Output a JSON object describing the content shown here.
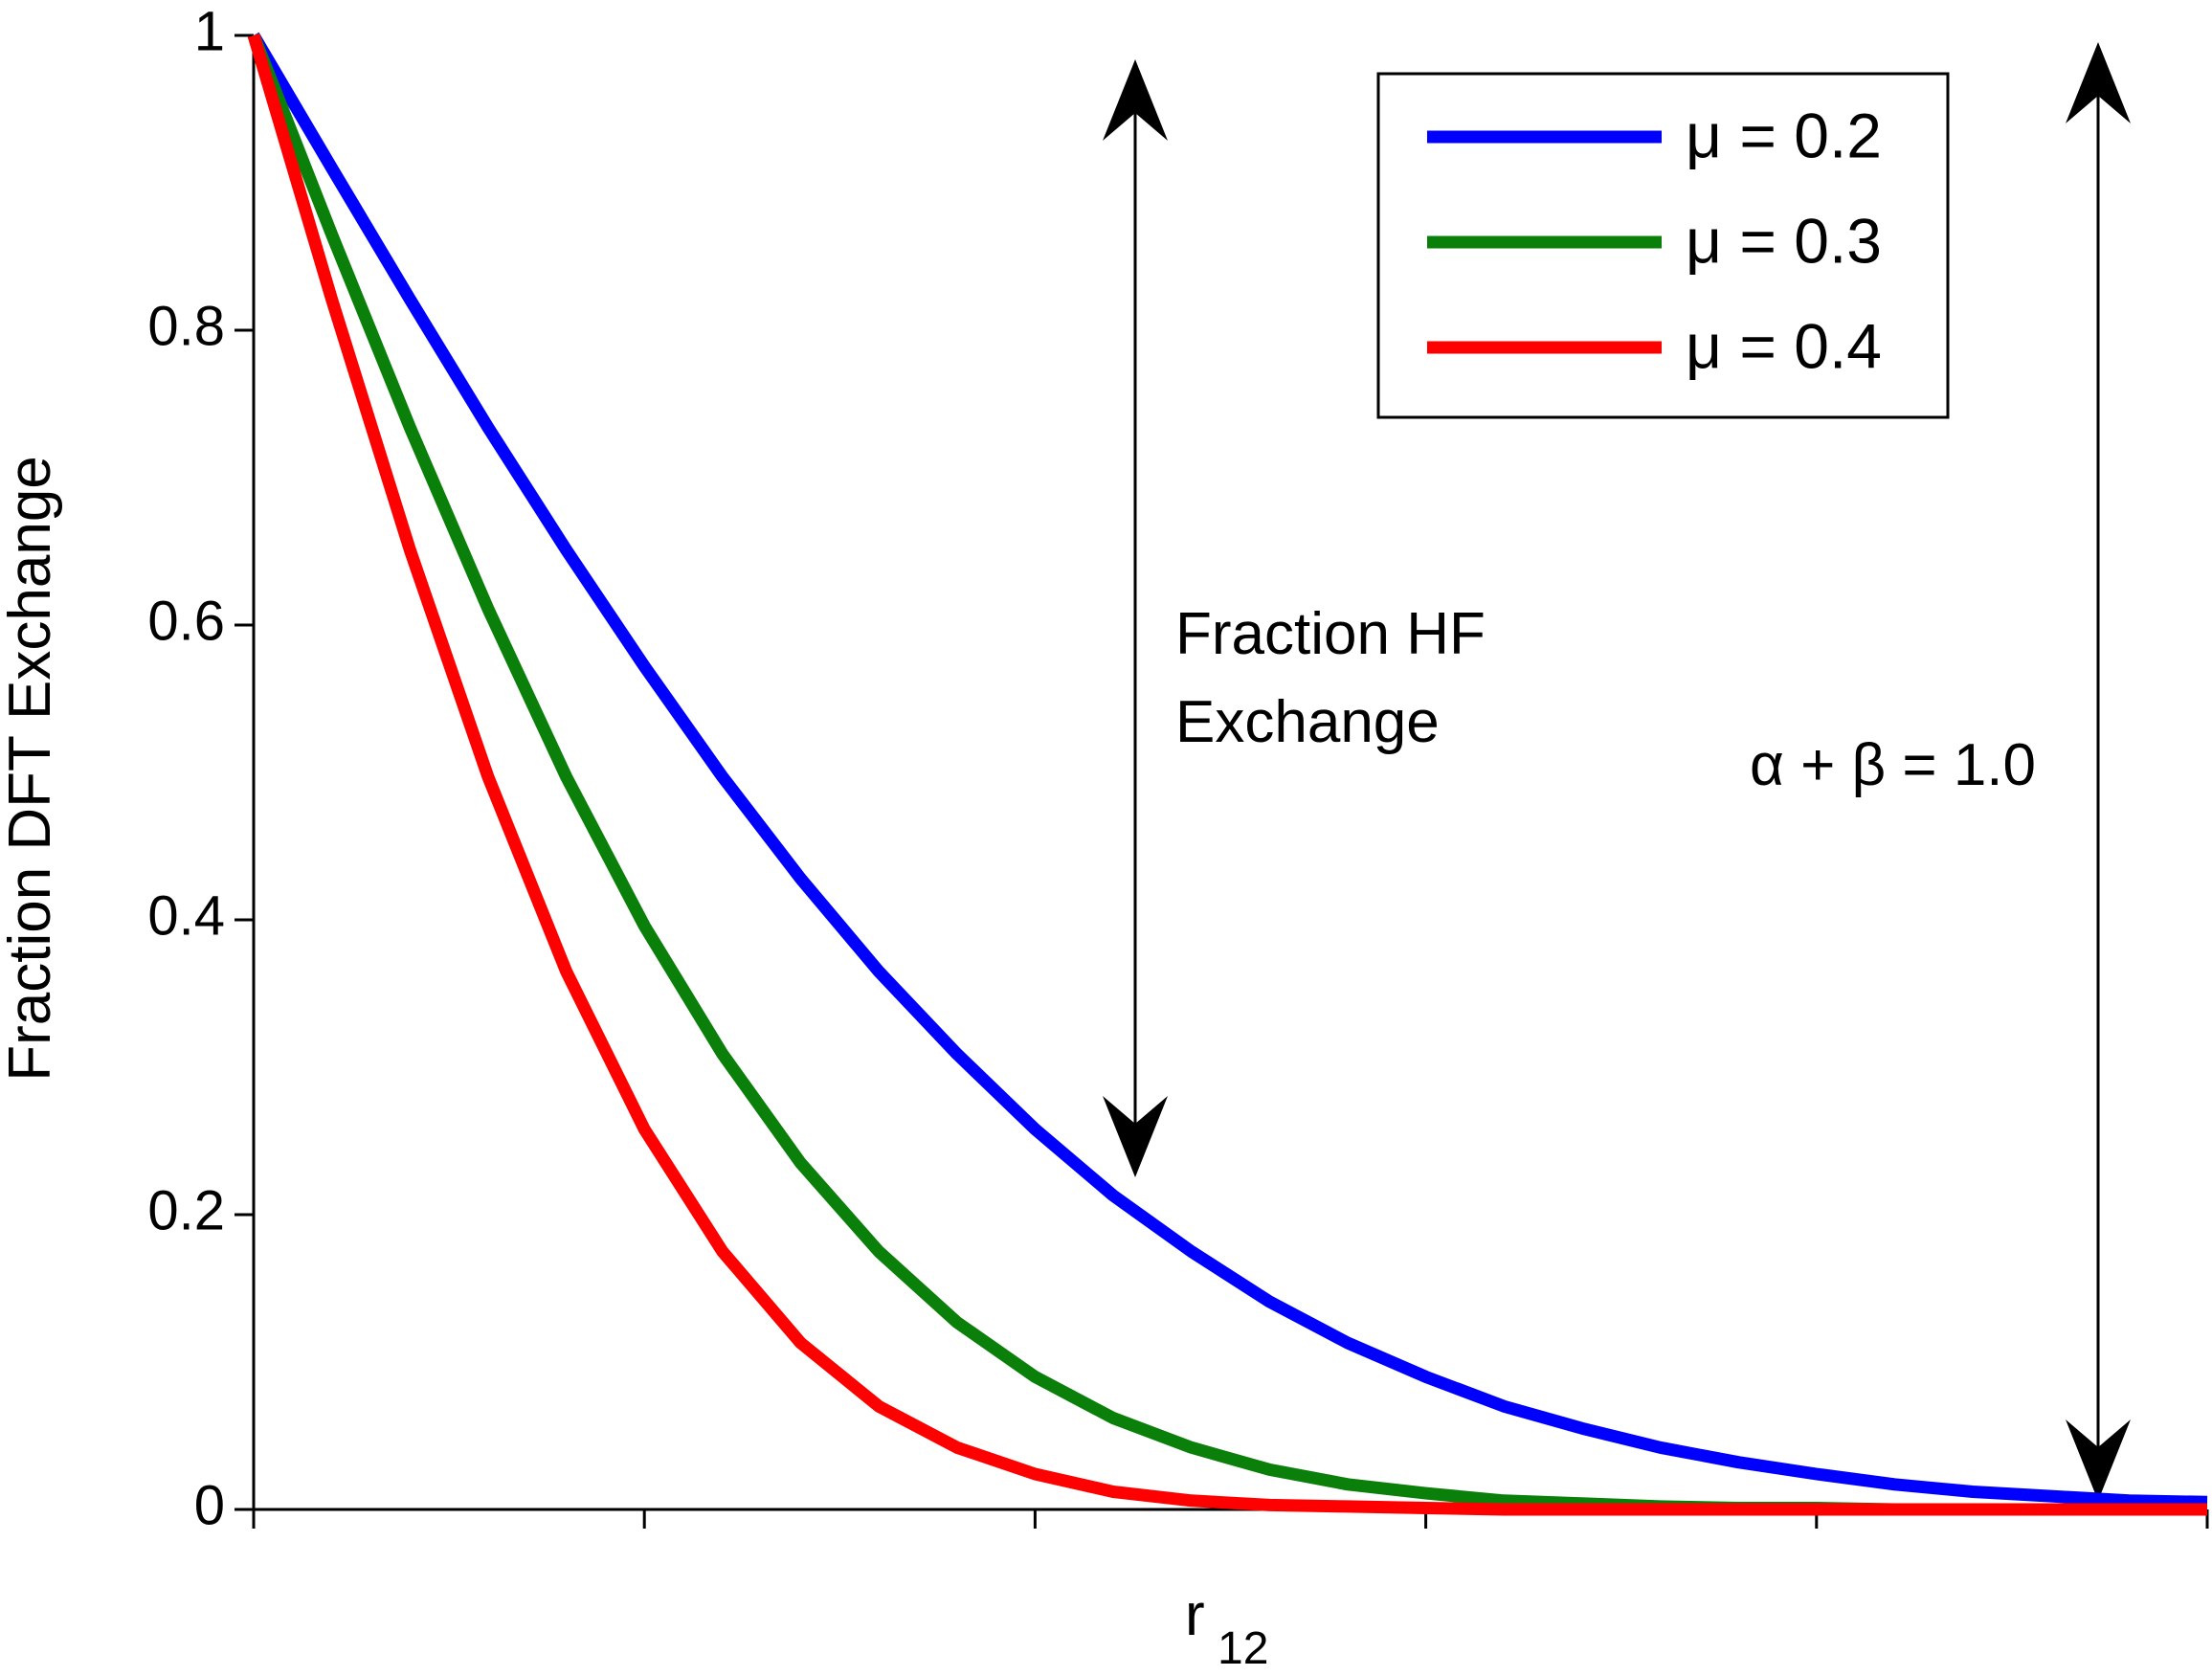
{
  "chart_data": {
    "type": "line",
    "y_label": "Fraction DFT Exchange",
    "x_label": "r",
    "x_label_subscript": "12",
    "x": [
      0,
      1,
      2,
      3,
      4,
      5,
      6,
      7,
      8,
      9,
      10,
      11,
      12,
      13,
      14,
      15,
      16,
      17,
      18,
      19,
      20,
      21,
      22,
      23,
      24,
      25
    ],
    "xlim": [
      0,
      25
    ],
    "xticks": [
      0,
      5,
      10,
      15,
      20,
      25
    ],
    "ylim": [
      0,
      1
    ],
    "yticks": [
      0,
      0.2,
      0.4,
      0.6,
      0.8,
      1
    ],
    "series": [
      {
        "name": "μ = 0.2",
        "color": "#0000ff",
        "values": [
          1,
          0.91,
          0.821,
          0.734,
          0.651,
          0.572,
          0.497,
          0.428,
          0.365,
          0.309,
          0.258,
          0.213,
          0.175,
          0.141,
          0.113,
          0.09,
          0.07,
          0.055,
          0.042,
          0.032,
          0.024,
          0.017,
          0.012,
          0.009,
          0.006,
          0.005
        ]
      },
      {
        "name": "μ = 0.3",
        "color": "#0a800a",
        "values": [
          1,
          0.865,
          0.734,
          0.611,
          0.497,
          0.396,
          0.309,
          0.235,
          0.175,
          0.127,
          0.09,
          0.062,
          0.042,
          0.027,
          0.017,
          0.011,
          0.006,
          0.004,
          0.002,
          0.001,
          0.001,
          0,
          0,
          0,
          0,
          0
        ]
      },
      {
        "name": "μ = 0.4",
        "color": "#ff0000",
        "values": [
          1,
          0.821,
          0.651,
          0.497,
          0.365,
          0.258,
          0.175,
          0.113,
          0.07,
          0.042,
          0.024,
          0.012,
          0.006,
          0.003,
          0.002,
          0.001,
          0,
          0,
          0,
          0,
          0,
          0,
          0,
          0,
          0,
          0
        ]
      }
    ],
    "annotations": [
      "Fraction HF",
      "Exchange",
      "α + β = 1.0"
    ]
  }
}
